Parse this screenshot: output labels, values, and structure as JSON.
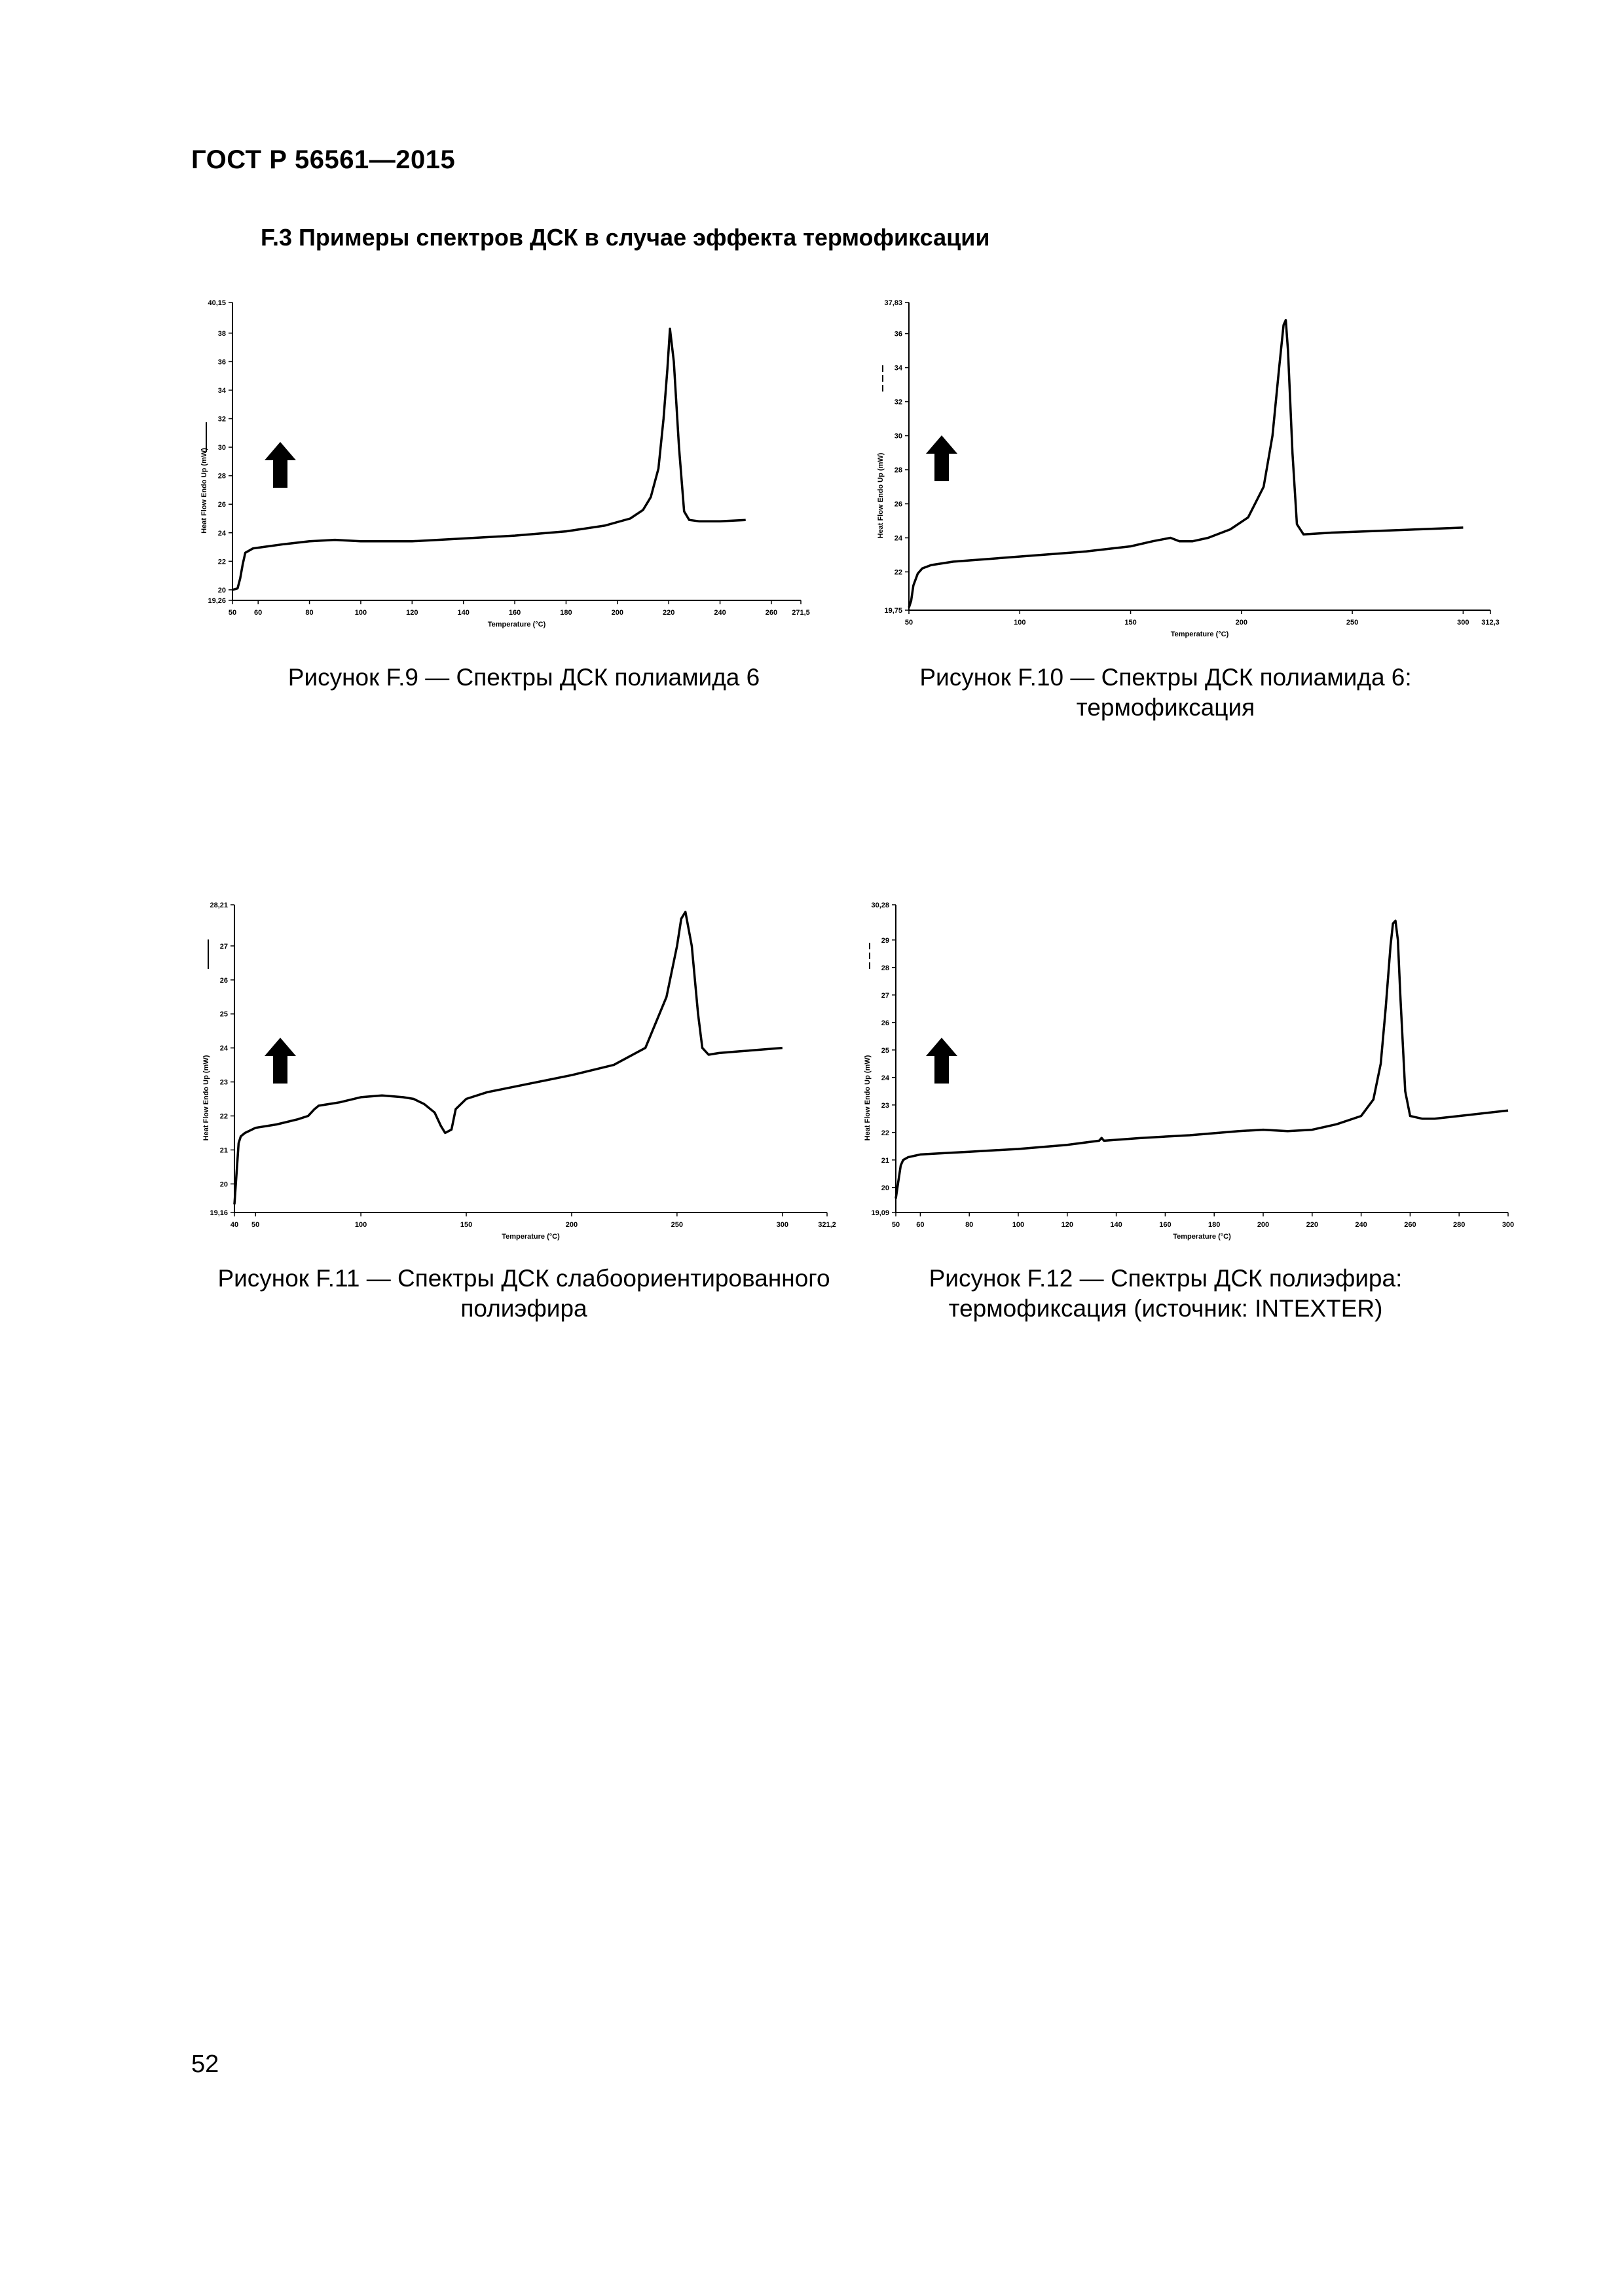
{
  "header": {
    "standard_code": "ГОСТ Р 56561—2015"
  },
  "section": {
    "heading": "F.3 Примеры спектров ДСК в случае эффекта термофиксации"
  },
  "figures": [
    {
      "caption": "Рисунок F.9 — Спектры ДСК полиамида 6"
    },
    {
      "caption": "Рисунок F.10 — Спектры ДСК полиамида 6: термофиксация"
    },
    {
      "caption": "Рисунок F.11 — Спектры ДСК слабоориентированного полиэфира"
    },
    {
      "caption": "Рисунок  F.12 — Спектры ДСК полиэфира: термофиксация (источник: INTEXTER)"
    }
  ],
  "page": {
    "number": "52"
  },
  "chart_data": [
    {
      "type": "line",
      "xlabel": "Temperature (°C)",
      "ylabel": "Heat Flow Endo Up (mW)",
      "xlim": [
        50,
        271.5
      ],
      "ylim": [
        19.26,
        40.15
      ],
      "xticks": [
        "50",
        "60",
        "80",
        "100",
        "120",
        "140",
        "160",
        "180",
        "200",
        "220",
        "240",
        "260",
        "271,5"
      ],
      "yticks": [
        "19,26",
        "20",
        "22",
        "24",
        "26",
        "28",
        "30",
        "32",
        "34",
        "36",
        "38",
        "40,15"
      ],
      "grid": false,
      "series": [
        {
          "x": [
            50,
            52,
            53,
            54,
            55,
            58,
            62,
            70,
            80,
            90,
            100,
            120,
            140,
            160,
            180,
            195,
            205,
            210,
            213,
            216,
            218,
            219.5,
            220.5,
            222,
            224,
            226,
            228,
            232,
            240,
            250
          ],
          "y": [
            20.0,
            20.1,
            20.8,
            21.8,
            22.6,
            22.9,
            23.0,
            23.2,
            23.4,
            23.5,
            23.4,
            23.4,
            23.6,
            23.8,
            24.1,
            24.5,
            25.0,
            25.6,
            26.5,
            28.5,
            32.0,
            35.5,
            38.3,
            36.0,
            30.0,
            25.5,
            24.9,
            24.8,
            24.8,
            24.9
          ]
        }
      ]
    },
    {
      "type": "line",
      "xlabel": "Temperature (°C)",
      "ylabel": "Heat Flow Endo Up (mW)",
      "xlim": [
        50,
        312.3
      ],
      "ylim": [
        19.75,
        37.83
      ],
      "xticks": [
        "50",
        "100",
        "150",
        "200",
        "250",
        "300",
        "312,3"
      ],
      "yticks": [
        "19,75",
        "22",
        "24",
        "26",
        "28",
        "30",
        "32",
        "34",
        "36",
        "37,83"
      ],
      "grid": false,
      "series": [
        {
          "x": [
            50,
            51,
            52,
            54,
            56,
            60,
            70,
            90,
            110,
            130,
            150,
            160,
            168,
            172,
            178,
            185,
            195,
            203,
            210,
            214,
            217,
            219,
            220,
            221,
            223,
            225,
            228,
            240,
            260,
            280,
            300
          ],
          "y": [
            19.9,
            20.3,
            21.2,
            21.9,
            22.2,
            22.4,
            22.6,
            22.8,
            23.0,
            23.2,
            23.5,
            23.8,
            24.0,
            23.8,
            23.8,
            24.0,
            24.5,
            25.2,
            27.0,
            30.0,
            34.0,
            36.5,
            36.8,
            35.0,
            29.0,
            24.8,
            24.2,
            24.3,
            24.4,
            24.5,
            24.6
          ]
        }
      ]
    },
    {
      "type": "line",
      "xlabel": "Temperature (°C)",
      "ylabel": "Heat Flow Endo Up (mW)",
      "xlim": [
        40,
        321.2
      ],
      "ylim": [
        19.16,
        28.21
      ],
      "xticks": [
        "40",
        "50",
        "100",
        "150",
        "200",
        "250",
        "300",
        "321,2"
      ],
      "yticks": [
        "19,16",
        "20",
        "21",
        "22",
        "23",
        "24",
        "25",
        "26",
        "27",
        "28,21"
      ],
      "grid": false,
      "series": [
        {
          "x": [
            40,
            41,
            42,
            43,
            45,
            50,
            60,
            70,
            75,
            78,
            80,
            90,
            100,
            110,
            120,
            125,
            130,
            135,
            138,
            140,
            143,
            145,
            150,
            160,
            180,
            200,
            220,
            235,
            245,
            250,
            252,
            254,
            257,
            260,
            262,
            265,
            270,
            280,
            300
          ],
          "y": [
            19.4,
            20.3,
            21.2,
            21.4,
            21.5,
            21.65,
            21.75,
            21.9,
            22.0,
            22.2,
            22.3,
            22.4,
            22.55,
            22.6,
            22.55,
            22.5,
            22.35,
            22.1,
            21.7,
            21.5,
            21.6,
            22.2,
            22.5,
            22.7,
            22.95,
            23.2,
            23.5,
            24.0,
            25.5,
            27.0,
            27.8,
            28.0,
            27.0,
            25.0,
            24.0,
            23.8,
            23.85,
            23.9,
            24.0
          ]
        }
      ]
    },
    {
      "type": "line",
      "xlabel": "Temperature (°C)",
      "ylabel": "Heat Flow Endo Up (mW)",
      "xlim": [
        50,
        300
      ],
      "ylim": [
        19.09,
        30.28
      ],
      "xticks": [
        "50",
        "60",
        "80",
        "100",
        "120",
        "140",
        "160",
        "180",
        "200",
        "220",
        "240",
        "260",
        "280",
        "300"
      ],
      "yticks": [
        "19,09",
        "20",
        "21",
        "22",
        "23",
        "24",
        "25",
        "26",
        "27",
        "28",
        "29",
        "30,28"
      ],
      "grid": false,
      "series": [
        {
          "x": [
            50,
            51,
            52,
            53,
            55,
            60,
            70,
            80,
            100,
            120,
            133,
            134,
            135,
            150,
            170,
            190,
            200,
            210,
            220,
            230,
            240,
            245,
            248,
            250,
            252,
            253,
            254,
            255,
            256,
            258,
            260,
            265,
            270,
            280,
            300
          ],
          "y": [
            19.6,
            20.2,
            20.8,
            21.0,
            21.1,
            21.2,
            21.25,
            21.3,
            21.4,
            21.55,
            21.7,
            21.8,
            21.7,
            21.8,
            21.9,
            22.05,
            22.1,
            22.05,
            22.1,
            22.3,
            22.6,
            23.2,
            24.5,
            26.5,
            28.8,
            29.6,
            29.7,
            29.0,
            27.0,
            23.5,
            22.6,
            22.5,
            22.5,
            22.6,
            22.8
          ]
        }
      ]
    }
  ]
}
